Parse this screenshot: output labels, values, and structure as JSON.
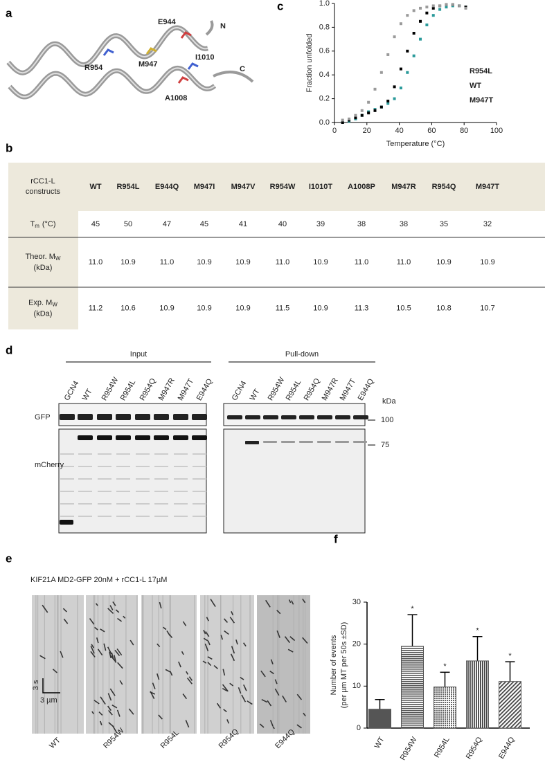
{
  "panel_labels": [
    "a",
    "b",
    "c",
    "d",
    "e",
    "f"
  ],
  "structure": {
    "labels": [
      "E944",
      "N",
      "R954",
      "M947",
      "I1010",
      "C",
      "A1008"
    ]
  },
  "chart_data": [
    {
      "type": "scatter",
      "xlabel": "Temperature (°C)",
      "ylabel": "Fraction unfolded",
      "x": [
        5,
        9,
        13,
        17,
        21,
        25,
        29,
        33,
        37,
        41,
        45,
        49,
        53,
        57,
        61,
        65,
        69,
        73,
        77,
        81
      ],
      "series": [
        {
          "name": "R954L",
          "color": "#2a9a9a",
          "values": [
            0.0,
            0.01,
            0.03,
            0.06,
            0.09,
            0.11,
            0.13,
            0.16,
            0.2,
            0.29,
            0.42,
            0.56,
            0.7,
            0.82,
            0.9,
            0.95,
            0.97,
            0.98,
            0.98,
            0.97
          ]
        },
        {
          "name": "WT",
          "color": "#000000",
          "values": [
            0.0,
            0.02,
            0.04,
            0.06,
            0.08,
            0.1,
            0.13,
            0.18,
            0.3,
            0.45,
            0.6,
            0.75,
            0.85,
            0.92,
            0.96,
            0.98,
            0.99,
            0.99,
            0.98,
            0.97
          ]
        },
        {
          "name": "M947T",
          "color": "#9a9a9a",
          "values": [
            0.02,
            0.03,
            0.06,
            0.1,
            0.17,
            0.28,
            0.42,
            0.57,
            0.72,
            0.83,
            0.9,
            0.94,
            0.96,
            0.97,
            0.98,
            0.98,
            0.99,
            0.99,
            0.98,
            0.96
          ]
        }
      ],
      "xlim": [
        0,
        100
      ],
      "xticks": [
        0,
        20,
        40,
        60,
        80,
        100
      ],
      "ylim": [
        0,
        1
      ],
      "yticks": [
        {
          "value": 0,
          "label": "0.0"
        },
        0.2,
        0.4,
        0.6,
        0.8,
        {
          "value": 1,
          "label": "1.0"
        }
      ]
    },
    {
      "type": "bar",
      "ylabel": "Number of events",
      "ylabel_sub": "(per µm MT per 50s ±SD)",
      "categories": [
        "WT",
        "R954W",
        "R954L",
        "R954Q",
        "E944Q"
      ],
      "values": [
        4.5,
        19.5,
        9.8,
        16,
        11.1
      ],
      "errors": [
        2.3,
        7.5,
        3.5,
        5.8,
        4.7
      ],
      "significance": [
        null,
        "*",
        "*",
        "*",
        "*"
      ],
      "color": "#555555",
      "ylim": [
        0,
        30
      ],
      "yticks": [
        0,
        10,
        20,
        30
      ]
    }
  ],
  "table": {
    "corner": [
      "rCC1-L",
      "constructs"
    ],
    "columns": [
      "WT",
      "R954L",
      "E944Q",
      "M947I",
      "M947V",
      "R954W",
      "I1010T",
      "A1008P",
      "M947R",
      "R954Q",
      "M947T"
    ],
    "rows": [
      {
        "label": "T",
        "sub": "m",
        "unit": "(°C)",
        "cells": [
          "45",
          "50",
          "47",
          "45",
          "41",
          "40",
          "39",
          "38",
          "38",
          "35",
          "32"
        ]
      },
      {
        "label": "Theor. M",
        "sub": "W",
        "unit": "(kDa)",
        "cells": [
          "11.0",
          "10.9",
          "11.0",
          "10.9",
          "10.9",
          "11.0",
          "10.9",
          "11.0",
          "11.0",
          "10.9",
          "10.9"
        ]
      },
      {
        "label": "Exp. M",
        "sub": "W",
        "unit": "(kDa)",
        "cells": [
          "11.2",
          "10.6",
          "10.9",
          "10.9",
          "10.9",
          "11.5",
          "10.9",
          "11.3",
          "10.5",
          "10.8",
          "10.7"
        ]
      }
    ]
  },
  "blot": {
    "groups": [
      "Input",
      "Pull-down"
    ],
    "input_lanes": [
      "GCN4",
      "WT",
      "R954W",
      "R954L",
      "R954Q",
      "M947R",
      "M947T",
      "E944Q"
    ],
    "pulldown_lanes": [
      "GCN4",
      "WT",
      "R954W",
      "R954L",
      "R954Q",
      "M947R",
      "M947T",
      "E944Q"
    ],
    "rows": [
      "GFP",
      "mCherry"
    ],
    "unit": "kDa",
    "markers": [
      "100",
      "75"
    ]
  },
  "kymograph": {
    "title": "KIF21A MD2-GFP 20nM + rCC1-L 17µM",
    "scale_time": "3 s",
    "scale_space": "3 µm",
    "lanes": [
      "WT",
      "R954W",
      "R954L",
      "R954Q",
      "E944Q"
    ]
  }
}
